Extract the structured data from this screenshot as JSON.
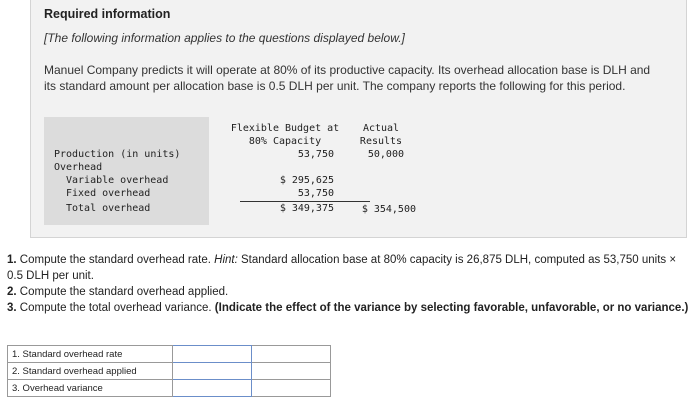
{
  "info": {
    "heading": "Required information",
    "note": "[The following information applies to the questions displayed below.]",
    "paragraph": "Manuel Company predicts it will operate at 80% of its productive capacity. Its overhead allocation base is DLH and its standard amount per allocation base is 0.5 DLH per unit. The company reports the following for this period."
  },
  "table": {
    "headers": {
      "flexible_line1": "Flexible Budget at",
      "flexible_line2": "80% Capacity",
      "actual_line1": "Actual",
      "actual_line2": "Results"
    },
    "rows": {
      "production_label": "Production (in units)",
      "production_flex": "53,750",
      "production_actual": "50,000",
      "overhead_label": "Overhead",
      "variable_label": "Variable overhead",
      "variable_flex": "$ 295,625",
      "fixed_label": "Fixed overhead",
      "fixed_flex": "53,750",
      "total_label": "Total overhead",
      "total_flex": "$ 349,375",
      "total_actual": "$ 354,500"
    }
  },
  "questions": {
    "q1_num": "1.",
    "q1_text": "Compute the standard overhead rate.",
    "q1_hint_label": "Hint:",
    "q1_hint": "Standard allocation base at 80% capacity is 26,875 DLH, computed as 53,750 units × 0.5 DLH per unit.",
    "q2_num": "2.",
    "q2_text": "Compute the standard overhead applied.",
    "q3_num": "3.",
    "q3_text": "Compute the total overhead variance.",
    "q3_bold": "(Indicate the effect of the variance by selecting favorable, unfavorable, or no variance.)"
  },
  "answer_table": {
    "rows": [
      {
        "label": "1. Standard overhead rate",
        "value": ""
      },
      {
        "label": "2. Standard overhead applied",
        "value": ""
      },
      {
        "label": "3. Overhead variance",
        "value": ""
      }
    ]
  }
}
